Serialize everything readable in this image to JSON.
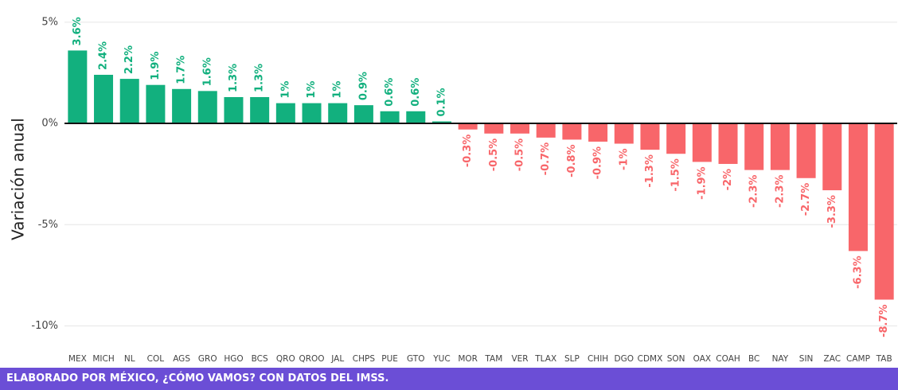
{
  "chart_data": {
    "type": "bar",
    "y_label": "Variación anual",
    "categories": [
      "MEX",
      "MICH",
      "NL",
      "COL",
      "AGS",
      "GRO",
      "HGO",
      "BCS",
      "QRO",
      "QROO",
      "JAL",
      "CHPS",
      "PUE",
      "GTO",
      "YUC",
      "MOR",
      "TAM",
      "VER",
      "TLAX",
      "SLP",
      "CHIH",
      "DGO",
      "CDMX",
      "SON",
      "OAX",
      "COAH",
      "BC",
      "NAY",
      "SIN",
      "ZAC",
      "CAMP",
      "TAB"
    ],
    "values": [
      3.6,
      2.4,
      2.2,
      1.9,
      1.7,
      1.6,
      1.3,
      1.3,
      1,
      1,
      1,
      0.9,
      0.6,
      0.6,
      0.1,
      -0.3,
      -0.5,
      -0.5,
      -0.7,
      -0.8,
      -0.9,
      -1,
      -1.3,
      -1.5,
      -1.9,
      -2,
      -2.3,
      -2.3,
      -2.7,
      -3.3,
      -6.3,
      -8.7
    ],
    "value_labels": [
      "3.6%",
      "2.4%",
      "2.2%",
      "1.9%",
      "1.7%",
      "1.6%",
      "1.3%",
      "1.3%",
      "1%",
      "1%",
      "1%",
      "0.9%",
      "0.6%",
      "0.6%",
      "0.1%",
      "-0.3%",
      "-0.5%",
      "-0.5%",
      "-0.7%",
      "-0.8%",
      "-0.9%",
      "-1%",
      "-1.3%",
      "-1.5%",
      "-1.9%",
      "-2%",
      "-2.3%",
      "-2.3%",
      "-2.7%",
      "-3.3%",
      "-6.3%",
      "-8.7%"
    ],
    "positive_color": "#12b07e",
    "negative_color": "#f8666a",
    "ylim": [
      -11,
      5.7
    ],
    "yticks": [
      {
        "value": 5,
        "label": "5%"
      },
      {
        "value": 0,
        "label": "0%"
      },
      {
        "value": -5,
        "label": "-5%"
      },
      {
        "value": -10,
        "label": "-10%"
      }
    ],
    "grid": true
  },
  "footer": "ELABORADO POR MÉXICO, ¿CÓMO VAMOS? CON DATOS DEL IMSS."
}
